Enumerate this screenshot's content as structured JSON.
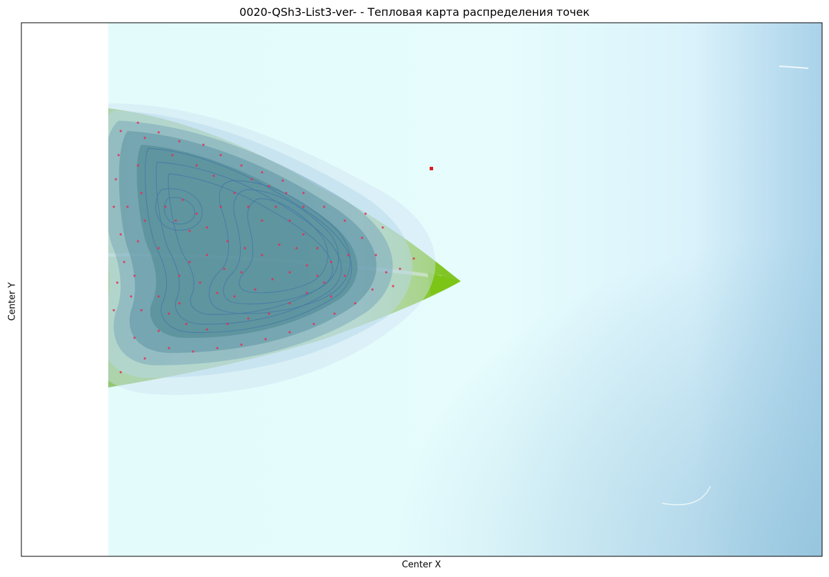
{
  "chart_data": {
    "type": "heatmap",
    "title": "0020-QSh3-List3-ver- - Тепловая карта распределения точек",
    "xlabel": "Center X",
    "ylabel": "Center Y",
    "xticks": [],
    "yticks": [],
    "background_image": "leaf photograph",
    "overlay": "kernel density contours",
    "colormap": "blues",
    "density_peaks": [
      {
        "x": 420,
        "y": 270,
        "level": 1.0
      },
      {
        "x": 270,
        "y": 300,
        "level": 0.8
      }
    ],
    "points_color": "#e0305a",
    "outlier_point": {
      "x": 626,
      "y": 245
    }
  }
}
